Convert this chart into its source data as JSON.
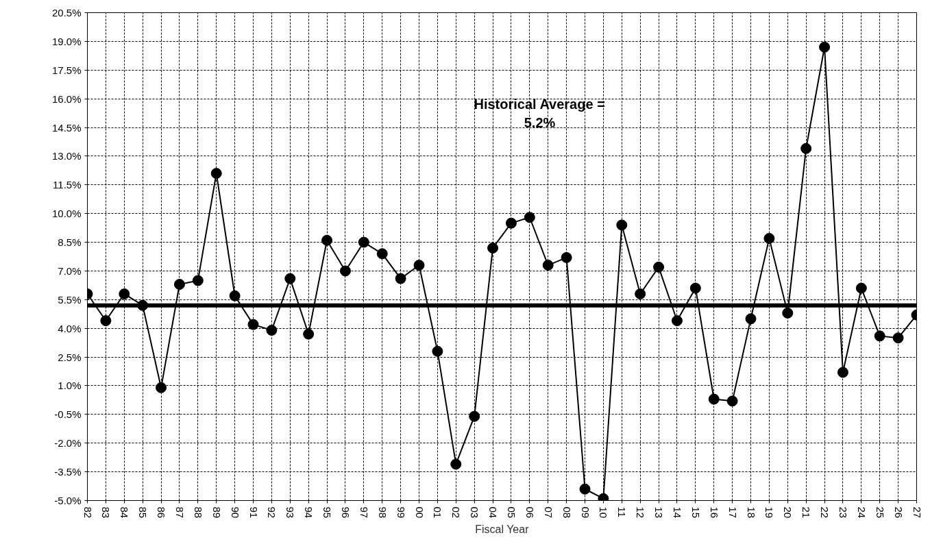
{
  "chart_data": {
    "type": "line",
    "xlabel": "Fiscal Year",
    "categories": [
      "82",
      "83",
      "84",
      "85",
      "86",
      "87",
      "88",
      "89",
      "90",
      "91",
      "92",
      "93",
      "94",
      "95",
      "96",
      "97",
      "98",
      "99",
      "00",
      "01",
      "02",
      "03",
      "04",
      "05",
      "06",
      "07",
      "08",
      "09",
      "10",
      "11",
      "12",
      "13",
      "14",
      "15",
      "16",
      "17",
      "18",
      "19",
      "20",
      "21",
      "22",
      "23",
      "24",
      "25",
      "26",
      "27"
    ],
    "series": [
      {
        "color": "#000000",
        "values": [
          5.8,
          4.4,
          5.8,
          5.2,
          0.9,
          6.3,
          6.5,
          12.1,
          5.7,
          4.2,
          3.9,
          6.6,
          3.7,
          8.6,
          7.0,
          8.5,
          7.9,
          6.6,
          7.3,
          2.8,
          -3.1,
          -0.6,
          8.2,
          9.5,
          9.8,
          7.3,
          7.7,
          -4.4,
          -4.9,
          9.4,
          5.8,
          7.2,
          4.4,
          6.1,
          0.3,
          0.2,
          4.5,
          8.7,
          4.8,
          13.4,
          18.7,
          1.7,
          6.1,
          3.6,
          3.5,
          4.7
        ]
      }
    ],
    "ylim": [
      -5.0,
      20.5
    ],
    "yticks": [
      {
        "value": -5.0,
        "label": "-5.0%"
      },
      {
        "value": -3.5,
        "label": "-3.5%"
      },
      {
        "value": -2.0,
        "label": "-2.0%"
      },
      {
        "value": -0.5,
        "label": "-0.5%"
      },
      {
        "value": 1.0,
        "label": "1.0%"
      },
      {
        "value": 2.5,
        "label": "2.5%"
      },
      {
        "value": 4.0,
        "label": "4.0%"
      },
      {
        "value": 5.5,
        "label": "5.5%"
      },
      {
        "value": 7.0,
        "label": "7.0%"
      },
      {
        "value": 8.5,
        "label": "8.5%"
      },
      {
        "value": 10.0,
        "label": "10.0%"
      },
      {
        "value": 11.5,
        "label": "11.5%"
      },
      {
        "value": 13.0,
        "label": "13.0%"
      },
      {
        "value": 14.5,
        "label": "14.5%"
      },
      {
        "value": 16.0,
        "label": "16.0%"
      },
      {
        "value": 17.5,
        "label": "17.5%"
      },
      {
        "value": 19.0,
        "label": "19.0%"
      },
      {
        "value": 20.5,
        "label": "20.5%"
      }
    ],
    "ref_lines": [
      {
        "axis": "y",
        "value": 5.2,
        "color": "#000000"
      }
    ],
    "annotations": [
      "Historical Average =\n5.2%"
    ],
    "grid": true,
    "marker": "circle",
    "line_style": "solid"
  }
}
